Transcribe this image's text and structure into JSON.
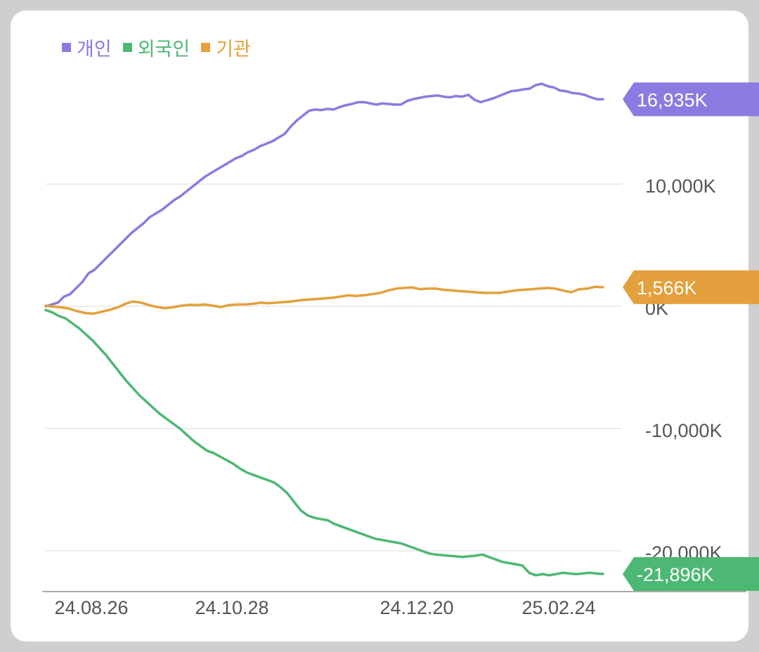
{
  "chart_data": {
    "type": "line",
    "x_ticks": [
      "24.08.26",
      "24.10.28",
      "24.12.20",
      "25.02.24"
    ],
    "y_ticks": [
      "10,000K",
      "0K",
      "-10,000K",
      "-20,000K"
    ],
    "ylim": [
      -23000,
      18000
    ],
    "legend_position": "top-left",
    "grid": true,
    "series": [
      {
        "name": "개인",
        "color": "#8b7be0",
        "last_label": "16,935K",
        "values": [
          0,
          150,
          300,
          800,
          1000,
          1500,
          2000,
          2700,
          3000,
          3500,
          4000,
          4500,
          5000,
          5500,
          6000,
          6400,
          6800,
          7300,
          7600,
          7900,
          8300,
          8700,
          9000,
          9400,
          9800,
          10200,
          10600,
          10900,
          11200,
          11500,
          11800,
          12100,
          12300,
          12600,
          12800,
          13100,
          13300,
          13500,
          13800,
          14100,
          14700,
          15200,
          15600,
          16000,
          16100,
          16050,
          16150,
          16100,
          16300,
          16450,
          16550,
          16700,
          16700,
          16600,
          16500,
          16600,
          16550,
          16500,
          16500,
          16800,
          16950,
          17050,
          17150,
          17200,
          17250,
          17150,
          17100,
          17200,
          17150,
          17300,
          16900,
          16700,
          16850,
          17000,
          17200,
          17400,
          17600,
          17650,
          17750,
          17800,
          18100,
          18200,
          18000,
          17900,
          17650,
          17600,
          17450,
          17400,
          17300,
          17100,
          16950,
          16935
        ]
      },
      {
        "name": "외국인",
        "color": "#4db873",
        "last_label": "-21,896K",
        "values": [
          -300,
          -500,
          -800,
          -1000,
          -1400,
          -1800,
          -2300,
          -2800,
          -3400,
          -4000,
          -4700,
          -5400,
          -6100,
          -6700,
          -7300,
          -7800,
          -8300,
          -8800,
          -9200,
          -9600,
          -10000,
          -10500,
          -11000,
          -11400,
          -11800,
          -12000,
          -12300,
          -12600,
          -12900,
          -13300,
          -13600,
          -13800,
          -14000,
          -14200,
          -14400,
          -14800,
          -15300,
          -16000,
          -16700,
          -17100,
          -17300,
          -17400,
          -17500,
          -17800,
          -18000,
          -18200,
          -18400,
          -18600,
          -18800,
          -19000,
          -19100,
          -19200,
          -19300,
          -19400,
          -19600,
          -19800,
          -20000,
          -20200,
          -20300,
          -20350,
          -20400,
          -20450,
          -20500,
          -20450,
          -20400,
          -20300,
          -20500,
          -20700,
          -20900,
          -21000,
          -21100,
          -21200,
          -21800,
          -22000,
          -21900,
          -22000,
          -21900,
          -21800,
          -21850,
          -21900,
          -21850,
          -21800,
          -21850,
          -21896
        ]
      },
      {
        "name": "기관",
        "color": "#e4a03c",
        "last_label": "1,566K",
        "values": [
          50,
          -30,
          -80,
          -200,
          -400,
          -550,
          -600,
          -450,
          -300,
          -100,
          200,
          400,
          300,
          100,
          -50,
          -150,
          -80,
          50,
          120,
          100,
          150,
          50,
          -50,
          100,
          150,
          150,
          200,
          300,
          250,
          300,
          350,
          400,
          500,
          550,
          600,
          650,
          700,
          800,
          900,
          850,
          900,
          1000,
          1100,
          1300,
          1450,
          1500,
          1550,
          1400,
          1450,
          1450,
          1350,
          1300,
          1250,
          1200,
          1150,
          1100,
          1100,
          1100,
          1200,
          1300,
          1350,
          1400,
          1450,
          1500,
          1450,
          1300,
          1150,
          1400,
          1450,
          1600,
          1566
        ]
      }
    ]
  }
}
